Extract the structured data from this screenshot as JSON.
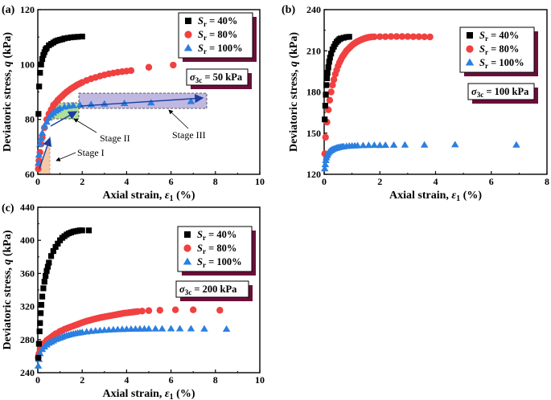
{
  "figure": {
    "panels": [
      "(a)",
      "(b)",
      "(c)"
    ]
  },
  "chart_data": [
    {
      "panel": "(a)",
      "type": "scatter",
      "xlabel": "Axial strain, ε1 (%)",
      "ylabel": "Deviatoric stress, q (kPa)",
      "xlim": [
        0,
        10
      ],
      "ylim": [
        60,
        120
      ],
      "xticks": [
        0,
        2,
        4,
        6,
        8,
        10
      ],
      "yticks": [
        60,
        80,
        100,
        120
      ],
      "confining_label": "σ3c = 50 kPa",
      "legend_position": "top-right",
      "series": [
        {
          "name": "Sr = 40%",
          "marker": "square",
          "color": "#000000",
          "x": [
            0.03,
            0.06,
            0.1,
            0.15,
            0.2,
            0.25,
            0.3,
            0.35,
            0.4,
            0.5,
            0.6,
            0.7,
            0.8,
            0.9,
            1.0,
            1.1,
            1.2,
            1.35,
            1.5,
            1.65,
            1.8,
            2.0
          ],
          "y": [
            82,
            92,
            97,
            100,
            102,
            103.5,
            104.5,
            105.5,
            106,
            107,
            107.5,
            108,
            108.5,
            108.8,
            109,
            109.2,
            109.5,
            109.7,
            109.9,
            110,
            110.1,
            110.2
          ]
        },
        {
          "name": "Sr = 80%",
          "marker": "circle",
          "color": "#f04040",
          "x": [
            0.02,
            0.05,
            0.1,
            0.15,
            0.2,
            0.3,
            0.4,
            0.5,
            0.6,
            0.7,
            0.8,
            0.9,
            1.0,
            1.1,
            1.2,
            1.3,
            1.4,
            1.5,
            1.6,
            1.7,
            1.8,
            1.9,
            2.0,
            2.2,
            2.4,
            2.6,
            2.8,
            3.0,
            3.2,
            3.4,
            3.6,
            3.8,
            4.0,
            4.2,
            5.0,
            6.1
          ],
          "y": [
            62,
            65,
            68,
            71,
            73.5,
            77,
            80,
            82,
            83.5,
            85,
            86,
            87,
            87.8,
            88.5,
            89.3,
            90,
            90.6,
            91.2,
            91.7,
            92.2,
            92.7,
            93.1,
            93.5,
            94.2,
            94.8,
            95.3,
            95.8,
            96.2,
            96.6,
            96.9,
            97.2,
            97.4,
            97.6,
            97.8,
            99,
            99.8
          ]
        },
        {
          "name": "Sr = 100%",
          "marker": "triangle",
          "color": "#2a7fe0",
          "x": [
            0.02,
            0.05,
            0.1,
            0.15,
            0.2,
            0.3,
            0.4,
            0.5,
            0.6,
            0.7,
            0.8,
            0.9,
            1.0,
            1.2,
            1.4,
            1.6,
            1.9,
            2.4,
            3.0,
            3.9,
            5.1,
            6.9
          ],
          "y": [
            64,
            67,
            71,
            73,
            75,
            77.5,
            79,
            80.5,
            81.5,
            82.3,
            83,
            83.5,
            84,
            84.5,
            84.8,
            85,
            85.2,
            85.4,
            85.6,
            85.8,
            86,
            86.5
          ]
        }
      ],
      "annotations": [
        "Stage I",
        "Stage II",
        "Stage III"
      ]
    },
    {
      "panel": "(b)",
      "type": "scatter",
      "xlabel": "Axial strain, ε1 (%)",
      "ylabel": "Deviatoric stress, q (kPa)",
      "xlim": [
        0,
        8
      ],
      "ylim": [
        120,
        240
      ],
      "xticks": [
        0,
        2,
        4,
        6,
        8
      ],
      "yticks": [
        120,
        150,
        180,
        210,
        240
      ],
      "confining_label": "σ3c = 100 kPa",
      "legend_position": "top-right",
      "series": [
        {
          "name": "Sr = 40%",
          "marker": "square",
          "color": "#000000",
          "x": [
            0.02,
            0.04,
            0.06,
            0.08,
            0.1,
            0.12,
            0.15,
            0.18,
            0.21,
            0.25,
            0.3,
            0.35,
            0.4,
            0.45,
            0.5,
            0.55,
            0.6,
            0.7,
            0.8,
            0.9
          ],
          "y": [
            160,
            170,
            178,
            185,
            190,
            194,
            198,
            202,
            205,
            208,
            211,
            213,
            215,
            216.5,
            217.5,
            218.5,
            219,
            219.5,
            220,
            220.2
          ]
        },
        {
          "name": "Sr = 80%",
          "marker": "circle",
          "color": "#f04040",
          "x": [
            0.02,
            0.05,
            0.1,
            0.15,
            0.2,
            0.25,
            0.3,
            0.35,
            0.4,
            0.45,
            0.5,
            0.55,
            0.6,
            0.65,
            0.7,
            0.75,
            0.8,
            0.85,
            0.9,
            0.95,
            1.0,
            1.05,
            1.1,
            1.15,
            1.2,
            1.25,
            1.3,
            1.35,
            1.4,
            1.45,
            1.5,
            1.55,
            1.6,
            1.65,
            1.7,
            1.8,
            2.0,
            2.2,
            2.4,
            2.6,
            2.8,
            3.0,
            3.2,
            3.4,
            3.6,
            3.8
          ],
          "y": [
            135,
            147,
            158,
            167,
            174,
            180,
            185,
            189,
            193,
            196,
            199,
            201.5,
            203.5,
            205.5,
            207,
            208.5,
            210,
            211,
            212,
            213,
            214,
            214.8,
            215.5,
            216.2,
            216.8,
            217.3,
            217.8,
            218.2,
            218.6,
            219,
            219.3,
            219.6,
            219.8,
            220,
            220.1,
            220.2,
            220.3,
            220.3,
            220.4,
            220.4,
            220.4,
            220.4,
            220.3,
            220.3,
            220.2,
            220.1
          ]
        },
        {
          "name": "Sr = 100%",
          "marker": "triangle",
          "color": "#2a7fe0",
          "x": [
            0.02,
            0.04,
            0.06,
            0.08,
            0.1,
            0.12,
            0.15,
            0.18,
            0.22,
            0.26,
            0.3,
            0.35,
            0.4,
            0.45,
            0.5,
            0.55,
            0.6,
            0.65,
            0.7,
            0.8,
            0.9,
            1.0,
            1.1,
            1.2,
            1.4,
            1.6,
            1.8,
            2.0,
            2.2,
            2.5,
            2.9,
            3.6,
            4.7,
            6.9
          ],
          "y": [
            124,
            127,
            130,
            132,
            133.5,
            134.5,
            135.5,
            136.3,
            137,
            137.5,
            138,
            138.4,
            138.8,
            139.1,
            139.4,
            139.6,
            139.8,
            140,
            140.1,
            140.3,
            140.5,
            140.6,
            140.7,
            140.8,
            140.9,
            141,
            141.1,
            141,
            141.1,
            141.2,
            141.3,
            141.3,
            141.5,
            141.3
          ]
        }
      ]
    },
    {
      "panel": "(c)",
      "type": "scatter",
      "xlabel": "Axial strain, ε1 (%)",
      "ylabel": "Deviatoric stress, q (kPa)",
      "xlim": [
        0,
        10
      ],
      "ylim": [
        240,
        440
      ],
      "xticks": [
        0,
        2,
        4,
        6,
        8,
        10
      ],
      "yticks": [
        240,
        280,
        320,
        360,
        400,
        440
      ],
      "confining_label": "σ3c = 200 kPa",
      "legend_position": "top-right",
      "series": [
        {
          "name": "Sr = 40%",
          "marker": "square",
          "color": "#000000",
          "x": [
            0.02,
            0.05,
            0.08,
            0.1,
            0.13,
            0.16,
            0.2,
            0.25,
            0.3,
            0.35,
            0.4,
            0.45,
            0.5,
            0.6,
            0.7,
            0.8,
            0.9,
            1.0,
            1.1,
            1.2,
            1.3,
            1.4,
            1.5,
            1.6,
            1.7,
            1.8,
            1.9,
            2.0,
            2.3
          ],
          "y": [
            258,
            275,
            290,
            300,
            312,
            322,
            332,
            342,
            350,
            357,
            363,
            368,
            373,
            381,
            387,
            392,
            396,
            400,
            403,
            405,
            407,
            408.5,
            409.5,
            410.5,
            411,
            411.5,
            412,
            412,
            412
          ]
        },
        {
          "name": "Sr = 80%",
          "marker": "circle",
          "color": "#f04040",
          "x": [
            0.02,
            0.05,
            0.1,
            0.2,
            0.3,
            0.4,
            0.5,
            0.6,
            0.7,
            0.8,
            0.9,
            1.0,
            1.1,
            1.2,
            1.3,
            1.4,
            1.5,
            1.6,
            1.7,
            1.8,
            1.9,
            2.0,
            2.1,
            2.2,
            2.3,
            2.4,
            2.5,
            2.6,
            2.7,
            2.8,
            2.9,
            3.0,
            3.1,
            3.2,
            3.3,
            3.4,
            3.5,
            3.6,
            3.7,
            3.8,
            3.9,
            4.0,
            4.1,
            4.2,
            4.3,
            4.4,
            4.5,
            4.7,
            5.0,
            5.5,
            6.2,
            7.0,
            8.2
          ],
          "y": [
            258,
            263,
            268,
            273,
            276,
            279,
            281,
            283,
            285,
            287,
            288,
            290,
            291,
            292.5,
            293.5,
            294.5,
            295.5,
            296.5,
            297.5,
            298.5,
            299.5,
            300.5,
            301.5,
            302.3,
            303,
            303.8,
            304.5,
            305.2,
            305.8,
            306.5,
            307,
            307.5,
            308,
            308.5,
            309,
            309.5,
            310,
            310.5,
            311,
            311.5,
            312,
            312.3,
            312.6,
            313,
            313.3,
            313.6,
            314,
            314.5,
            315,
            315.5,
            316,
            316,
            315.5
          ]
        },
        {
          "name": "Sr = 100%",
          "marker": "triangle",
          "color": "#2a7fe0",
          "x": [
            0.02,
            0.05,
            0.1,
            0.2,
            0.3,
            0.4,
            0.5,
            0.6,
            0.7,
            0.8,
            0.9,
            1.0,
            1.1,
            1.2,
            1.3,
            1.4,
            1.5,
            1.6,
            1.7,
            1.8,
            1.9,
            2.0,
            2.2,
            2.4,
            2.6,
            2.8,
            3.0,
            3.2,
            3.4,
            3.6,
            3.8,
            4.0,
            4.2,
            4.4,
            4.6,
            4.8,
            5.0,
            5.3,
            5.6,
            6.0,
            6.4,
            6.9,
            7.5,
            8.5
          ],
          "y": [
            248,
            256,
            263,
            268,
            271,
            273.5,
            275.5,
            277,
            278.5,
            280,
            281,
            282,
            283,
            284,
            284.8,
            285.5,
            286.2,
            286.8,
            287.3,
            287.8,
            288.2,
            288.6,
            289.3,
            289.9,
            290.4,
            290.8,
            291.2,
            291.5,
            291.8,
            292,
            292.2,
            292.4,
            292.5,
            292.6,
            292.7,
            292.8,
            292.8,
            292.9,
            292.9,
            293,
            293,
            293,
            292.8,
            292.5
          ]
        }
      ]
    }
  ]
}
